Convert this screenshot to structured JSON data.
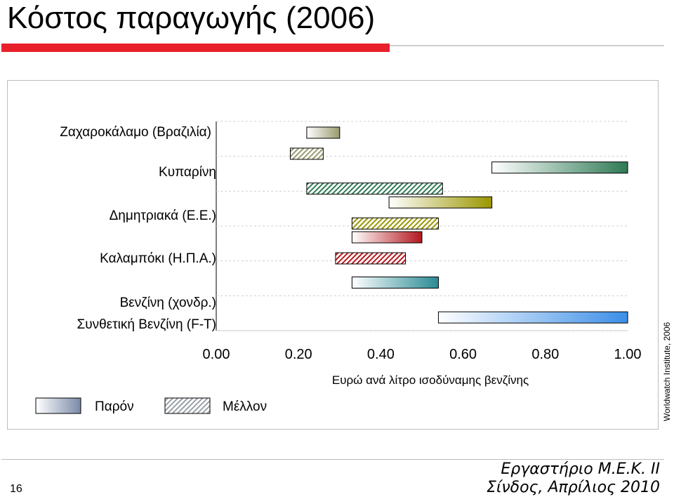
{
  "slide": {
    "title": "Κόστος παραγωγής (2006)",
    "page_number": "16",
    "footer_line1": "Εργαστήριο Μ.Ε.Κ. ΙΙ",
    "footer_line2": "Σίνδος, Απρίλιος 2010",
    "side_credit": "Worldwatch Institute, 2006",
    "accent_color": "#e8202a"
  },
  "chart_data": {
    "type": "bar",
    "orientation": "horizontal-range",
    "title": "",
    "xlabel": "Ευρώ ανά λίτρο ισοδύναμης βενζίνης",
    "ylabel": "",
    "xlim": [
      0,
      1.0
    ],
    "xticks": [
      "0.00",
      "0.20",
      "0.40",
      "0.60",
      "0.80",
      "1.00"
    ],
    "grid": "y",
    "legend": [
      {
        "name": "Παρόν",
        "style": "solid-gradient"
      },
      {
        "name": "Μέλλον",
        "style": "hatched"
      }
    ],
    "categories": [
      "Ζαχαροκάλαμο (Βραζιλία)",
      "Κυπαρίνη",
      "Δημητριακά (Ε.Ε.)",
      "Καλαμπόκι (Η.Π.Α.)",
      "Βενζίνη (χονδρ.)",
      "Συνθετική Βενζίνη (F-T)"
    ],
    "series": [
      {
        "name": "Παρόν",
        "ranges": [
          [
            0.22,
            0.3
          ],
          [
            0.67,
            1.0
          ],
          [
            0.42,
            0.67
          ],
          [
            0.33,
            0.5
          ],
          [
            0.33,
            0.54
          ],
          [
            0.54,
            1.0
          ]
        ],
        "colors": [
          "#9a9a70",
          "#2f7a55",
          "#9a9600",
          "#b3171d",
          "#2a8a94",
          "#3b8ee8"
        ]
      },
      {
        "name": "Μέλλον",
        "ranges": [
          [
            0.18,
            0.26
          ],
          [
            0.22,
            0.55
          ],
          [
            0.33,
            0.54
          ],
          [
            0.29,
            0.46
          ],
          null,
          null
        ],
        "colors": [
          "#9a9a70",
          "#2f7a55",
          "#9a9600",
          "#b3171d",
          null,
          null
        ]
      }
    ]
  }
}
